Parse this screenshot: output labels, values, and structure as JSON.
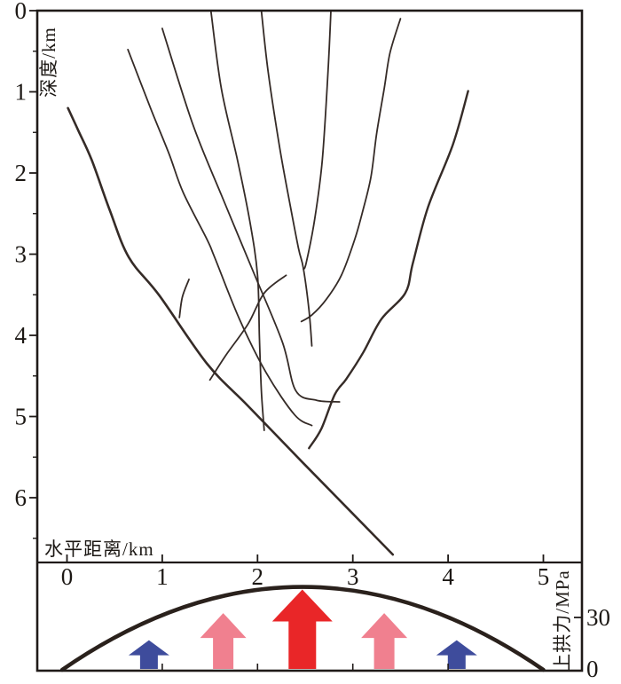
{
  "figure": {
    "axes": {
      "depth": {
        "label": "深度/km",
        "tick_labels": [
          "0",
          "1",
          "2",
          "3",
          "4",
          "5",
          "6"
        ],
        "range_km": [
          0,
          6.8
        ]
      },
      "horizontal": {
        "label": "水平距离/km",
        "tick_labels": [
          "0",
          "1",
          "2",
          "3",
          "4",
          "5"
        ],
        "range_km": [
          -0.31,
          5.41
        ]
      },
      "uplift": {
        "label": "上拱力/MPa",
        "tick_labels": [
          "30",
          "0"
        ],
        "range_mpa": [
          0,
          62
        ]
      }
    }
  },
  "colors": {
    "axis": "#1f1a18",
    "fault": "#352b27",
    "arch": "#2a211c",
    "arrow_blue": "#3e4c9c",
    "arrow_pink": "#f0808f",
    "arrow_red": "#e92628"
  },
  "chart_data": {
    "type": "line",
    "title": "",
    "panels": [
      {
        "name": "fault-cross-section",
        "xlabel": "水平距离/km",
        "ylabel": "深度/km",
        "xlim_km": [
          -0.31,
          5.41
        ],
        "depth_lim_km": [
          0,
          6.8
        ],
        "x_ticks_km": [
          0,
          1,
          2,
          3,
          4,
          5
        ],
        "depth_ticks_km": [
          0,
          1,
          2,
          3,
          4,
          5,
          6
        ],
        "depth_minor_ticks_km": [
          0.5,
          1.5,
          2.5,
          3.5,
          4.5,
          5.5,
          6.5
        ],
        "grid": false,
        "fault_lines": [
          {
            "id": "F1-main-detachment",
            "width": 2.6,
            "points_km_depth": [
              [
                0.01,
                1.2
              ],
              [
                0.12,
                1.48
              ],
              [
                0.26,
                1.84
              ],
              [
                0.45,
                2.46
              ],
              [
                0.65,
                3.04
              ],
              [
                0.97,
                3.51
              ],
              [
                1.47,
                4.35
              ],
              [
                1.9,
                4.87
              ],
              [
                2.46,
                5.55
              ],
              [
                3.42,
                6.7
              ]
            ]
          },
          {
            "id": "F2",
            "width": 1.8,
            "points_km_depth": [
              [
                0.64,
                0.48
              ],
              [
                0.88,
                1.21
              ],
              [
                1.07,
                1.76
              ],
              [
                1.22,
                2.24
              ],
              [
                1.47,
                2.82
              ],
              [
                1.55,
                3.04
              ],
              [
                1.81,
                3.8
              ],
              [
                2.09,
                4.46
              ],
              [
                2.39,
                4.98
              ],
              [
                2.57,
                5.11
              ]
            ]
          },
          {
            "id": "F3",
            "width": 1.8,
            "points_km_depth": [
              [
                1.0,
                0.22
              ],
              [
                1.32,
                1.4
              ],
              [
                1.62,
                2.27
              ],
              [
                1.95,
                3.2
              ],
              [
                2.26,
                4.08
              ],
              [
                2.4,
                4.68
              ],
              [
                2.62,
                4.8
              ],
              [
                2.86,
                4.82
              ]
            ]
          },
          {
            "id": "F4",
            "width": 1.8,
            "points_km_depth": [
              [
                1.51,
                0.0
              ],
              [
                1.62,
                0.96
              ],
              [
                1.79,
                1.84
              ],
              [
                1.92,
                2.6
              ],
              [
                2.0,
                3.26
              ],
              [
                2.02,
                4.02
              ],
              [
                2.04,
                4.68
              ],
              [
                2.07,
                5.17
              ]
            ]
          },
          {
            "id": "F5",
            "width": 1.8,
            "points_km_depth": [
              [
                2.04,
                0.0
              ],
              [
                2.11,
                0.74
              ],
              [
                2.23,
                1.67
              ],
              [
                2.34,
                2.38
              ],
              [
                2.43,
                2.93
              ],
              [
                2.48,
                3.17
              ],
              [
                2.54,
                3.69
              ],
              [
                2.57,
                4.13
              ]
            ]
          },
          {
            "id": "F6",
            "width": 1.8,
            "points_km_depth": [
              [
                2.77,
                0.0
              ],
              [
                2.74,
                0.74
              ],
              [
                2.68,
                1.84
              ],
              [
                2.6,
                2.57
              ],
              [
                2.51,
                3.11
              ],
              [
                2.48,
                3.18
              ]
            ]
          },
          {
            "id": "F7",
            "width": 1.8,
            "points_km_depth": [
              [
                3.5,
                0.1
              ],
              [
                3.39,
                0.52
              ],
              [
                3.33,
                0.96
              ],
              [
                3.25,
                1.51
              ],
              [
                3.19,
                2.05
              ],
              [
                3.1,
                2.49
              ],
              [
                3.02,
                2.82
              ],
              [
                2.88,
                3.26
              ],
              [
                2.72,
                3.56
              ],
              [
                2.57,
                3.75
              ],
              [
                2.46,
                3.83
              ]
            ]
          },
          {
            "id": "F8",
            "width": 2.4,
            "points_km_depth": [
              [
                4.21,
                0.99
              ],
              [
                4.05,
                1.65
              ],
              [
                3.79,
                2.42
              ],
              [
                3.63,
                3.11
              ],
              [
                3.55,
                3.48
              ],
              [
                3.3,
                3.8
              ],
              [
                3.11,
                4.21
              ],
              [
                2.93,
                4.54
              ],
              [
                2.81,
                4.73
              ],
              [
                2.67,
                5.15
              ],
              [
                2.54,
                5.39
              ]
            ]
          },
          {
            "id": "S1-splay-hook",
            "width": 1.8,
            "points_km_depth": [
              [
                1.28,
                3.31
              ],
              [
                1.21,
                3.53
              ],
              [
                1.18,
                3.78
              ]
            ]
          },
          {
            "id": "S2-cross-splay",
            "width": 1.8,
            "points_km_depth": [
              [
                2.3,
                3.26
              ],
              [
                2.07,
                3.48
              ],
              [
                1.9,
                3.86
              ],
              [
                1.67,
                4.24
              ],
              [
                1.5,
                4.55
              ]
            ]
          }
        ]
      },
      {
        "name": "uplift-force",
        "ylabel": "上拱力/MPa",
        "mpa_lim": [
          0,
          62
        ],
        "mpa_ticks": [
          {
            "value": 30,
            "label": "30"
          },
          {
            "value": 0,
            "label": "0"
          }
        ],
        "bottom_edge_ticks_km": [
          1,
          2,
          3,
          4
        ],
        "arch_curve": {
          "start_km": -0.05,
          "peak_km": 2.47,
          "end_km": 5.0,
          "start_mpa": 0,
          "peak_mpa": 47.5,
          "end_mpa": 0
        },
        "arrows": [
          {
            "x_km": 0.86,
            "mpa": 17.0,
            "color_key": "arrow_blue",
            "size": "small",
            "head_w": 46,
            "head_h": 17,
            "shaft_w": 20
          },
          {
            "x_km": 1.64,
            "mpa": 32.5,
            "color_key": "arrow_pink",
            "size": "medium",
            "head_w": 52,
            "head_h": 28,
            "shaft_w": 23
          },
          {
            "x_km": 2.47,
            "mpa": 46.0,
            "color_key": "arrow_red",
            "size": "large",
            "head_w": 68,
            "head_h": 36,
            "shaft_w": 31
          },
          {
            "x_km": 3.33,
            "mpa": 32.5,
            "color_key": "arrow_pink",
            "size": "medium",
            "head_w": 52,
            "head_h": 28,
            "shaft_w": 23
          },
          {
            "x_km": 4.09,
            "mpa": 17.0,
            "color_key": "arrow_blue",
            "size": "small",
            "head_w": 46,
            "head_h": 17,
            "shaft_w": 20
          }
        ]
      }
    ]
  }
}
